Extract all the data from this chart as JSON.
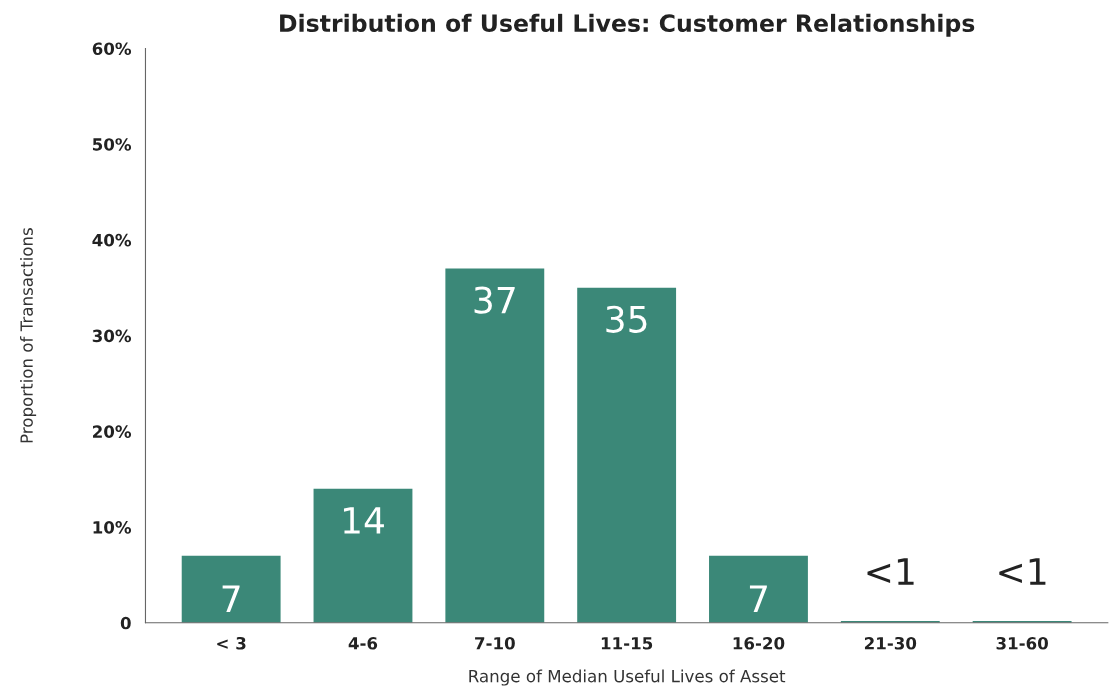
{
  "chart_data": {
    "type": "bar",
    "title": "Distribution of Useful Lives: Customer Relationships",
    "xlabel": "Range of Median Useful Lives of Asset",
    "ylabel": "Proportion of Transactions",
    "categories": [
      "< 3",
      "4-6",
      "7-10",
      "11-15",
      "16-20",
      "21-30",
      "31-60"
    ],
    "values": [
      7,
      14,
      37,
      35,
      7,
      0.2,
      0.2
    ],
    "value_labels": [
      "7",
      "14",
      "37",
      "35",
      "7",
      "<1",
      "<1"
    ],
    "color": "#3b8878",
    "ylim": [
      0,
      60
    ],
    "yticks": [
      0,
      {
        "value": 10,
        "label": "10%"
      },
      {
        "value": 20,
        "label": "20%"
      },
      {
        "value": 30,
        "label": "30%"
      },
      {
        "value": 40,
        "label": "40%"
      },
      {
        "value": 50,
        "label": "50%"
      },
      {
        "value": 60,
        "label": "60%"
      }
    ],
    "grid": false,
    "legend": false
  }
}
